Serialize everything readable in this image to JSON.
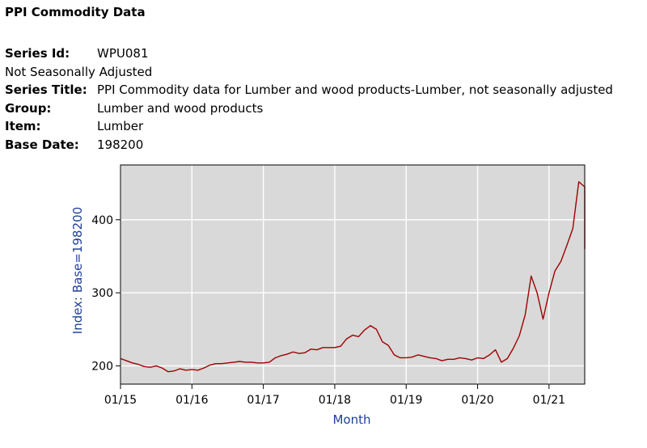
{
  "page": {
    "title": "PPI Commodity Data"
  },
  "series_info": [
    {
      "label": "Series Id:",
      "value": "WPU081"
    },
    {
      "full": "Not Seasonally Adjusted"
    },
    {
      "label": "Series Title:",
      "value": "PPI Commodity data for Lumber and wood products-Lumber, not seasonally adjusted"
    },
    {
      "label": "Group:",
      "value": "Lumber and wood products"
    },
    {
      "label": "Item:",
      "value": "Lumber"
    },
    {
      "label": "Base Date:",
      "value": "198200"
    }
  ],
  "chart_data": {
    "type": "line",
    "title": "",
    "xlabel": "Month",
    "ylabel": "Index: Base=198200",
    "x_tick_labels": [
      "01/15",
      "01/16",
      "01/17",
      "01/18",
      "01/19",
      "01/20",
      "01/21"
    ],
    "y_tick_labels": [
      "200",
      "300",
      "400"
    ],
    "y_ticks": [
      200,
      300,
      400
    ],
    "xlim": [
      "2015-01",
      "2021-07"
    ],
    "ylim": [
      175,
      475
    ],
    "grid": true,
    "background_color": "#d9d9d9",
    "line_color": "#a00000",
    "axis_label_color": "#1f3f99",
    "series": [
      {
        "x": [
          "2015-01",
          "2015-02",
          "2015-03",
          "2015-04",
          "2015-05",
          "2015-06",
          "2015-07",
          "2015-08",
          "2015-09",
          "2015-10",
          "2015-11",
          "2015-12",
          "2016-01",
          "2016-02",
          "2016-03",
          "2016-04",
          "2016-05",
          "2016-06",
          "2016-07",
          "2016-08",
          "2016-09",
          "2016-10",
          "2016-11",
          "2016-12",
          "2017-01",
          "2017-02",
          "2017-03",
          "2017-04",
          "2017-05",
          "2017-06",
          "2017-07",
          "2017-08",
          "2017-09",
          "2017-10",
          "2017-11",
          "2017-12",
          "2018-01",
          "2018-02",
          "2018-03",
          "2018-04",
          "2018-05",
          "2018-06",
          "2018-07",
          "2018-08",
          "2018-09",
          "2018-10",
          "2018-11",
          "2018-12",
          "2019-01",
          "2019-02",
          "2019-03",
          "2019-04",
          "2019-05",
          "2019-06",
          "2019-07",
          "2019-08",
          "2019-09",
          "2019-10",
          "2019-11",
          "2019-12",
          "2020-01",
          "2020-02",
          "2020-03",
          "2020-04",
          "2020-05",
          "2020-06",
          "2020-07",
          "2020-08",
          "2020-09",
          "2020-10",
          "2020-11",
          "2020-12",
          "2021-01",
          "2021-02",
          "2021-03",
          "2021-04",
          "2021-05",
          "2021-06",
          "2021-07"
        ],
        "values": [
          210,
          207,
          204,
          202,
          199,
          198,
          200,
          197,
          192,
          193,
          196,
          194,
          195,
          194,
          197,
          201,
          203,
          203,
          204,
          205,
          206,
          205,
          205,
          204,
          204,
          205,
          211,
          214,
          216,
          219,
          217,
          218,
          223,
          222,
          225,
          225,
          225,
          227,
          237,
          242,
          240,
          249,
          255,
          250,
          233,
          228,
          215,
          211,
          211,
          212,
          215,
          213,
          211,
          210,
          207,
          209,
          209,
          211,
          210,
          208,
          211,
          210,
          215,
          222,
          205,
          210,
          224,
          241,
          270,
          323,
          300,
          264,
          300,
          330,
          343,
          365,
          388,
          452,
          445
        ]
      },
      {
        "x": [
          "2021-07"
        ],
        "values": [
          360
        ]
      }
    ]
  }
}
